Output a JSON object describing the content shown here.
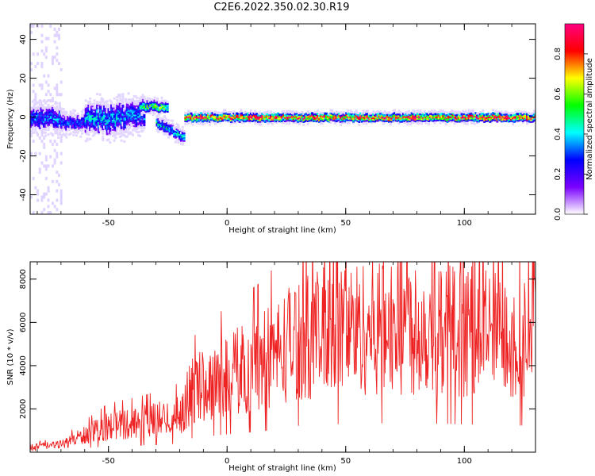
{
  "figure": {
    "title": "C2E6.2022.350.02.30.R19"
  },
  "chart_data": [
    {
      "type": "heatmap",
      "xlabel": "Height of straight line (km)",
      "ylabel": "Frequency (Hz)",
      "xlim": [
        -83,
        130
      ],
      "ylim": [
        -50,
        48
      ],
      "x_ticks": [
        -50,
        0,
        50,
        100
      ],
      "y_ticks": [
        -40,
        -20,
        0,
        20,
        40
      ],
      "colorbar": {
        "label": "Normalized spectral amplitude",
        "range": [
          0.0,
          0.95
        ],
        "ticks": [
          "0.0",
          "0.2",
          "0.4",
          "0.6",
          "0.8"
        ],
        "colormap": [
          "#ffffff",
          "#7a00ff",
          "#0000ff",
          "#00ffff",
          "#00ff00",
          "#ffff00",
          "#ff0000",
          "#ff0080"
        ]
      },
      "segments": [
        {
          "x_start": -83,
          "x_end": -70,
          "y_center": 0,
          "spread": 4,
          "peak": 0.35
        },
        {
          "x_start": -70,
          "x_end": -60,
          "y_center": -2,
          "spread": 3,
          "peak": 0.3
        },
        {
          "x_start": -60,
          "x_end": -45,
          "y_center": 0,
          "spread": 5,
          "peak": 0.4
        },
        {
          "x_start": -45,
          "x_end": -35,
          "y_center": 1,
          "spread": 5,
          "peak": 0.35
        },
        {
          "x_start": -37,
          "x_end": -25,
          "y_center": 6,
          "spread": 2,
          "peak": 0.6
        },
        {
          "x_start": -30,
          "x_end": -18,
          "y_center_start": -2,
          "y_center_end": -10,
          "spread": 2,
          "peak": 0.45
        },
        {
          "x_start": -18,
          "x_end": 130,
          "y_center": 0.5,
          "spread": 1.5,
          "peak": 0.9
        }
      ],
      "noise": {
        "x_start": -83,
        "x_end": -70,
        "y_range": [
          -50,
          48
        ]
      }
    },
    {
      "type": "line",
      "xlabel": "Height of straight line (km)",
      "ylabel": "SNR (10 * v/v)",
      "xlim": [
        -83,
        130
      ],
      "ylim": [
        0,
        8800
      ],
      "x_ticks": [
        -50,
        0,
        50,
        100
      ],
      "y_ticks": [
        2000,
        4000,
        6000,
        8000
      ],
      "color": "#ee2222",
      "trend": [
        {
          "x": -83,
          "y": 250
        },
        {
          "x": -70,
          "y": 350
        },
        {
          "x": -62,
          "y": 700
        },
        {
          "x": -50,
          "y": 1200
        },
        {
          "x": -35,
          "y": 1400
        },
        {
          "x": -20,
          "y": 1700
        },
        {
          "x": -15,
          "y": 2800
        },
        {
          "x": 0,
          "y": 3600
        },
        {
          "x": 15,
          "y": 4200
        },
        {
          "x": 30,
          "y": 5300
        },
        {
          "x": 50,
          "y": 5700
        },
        {
          "x": 75,
          "y": 5900
        },
        {
          "x": 100,
          "y": 5600
        },
        {
          "x": 130,
          "y": 5300
        }
      ]
    }
  ]
}
